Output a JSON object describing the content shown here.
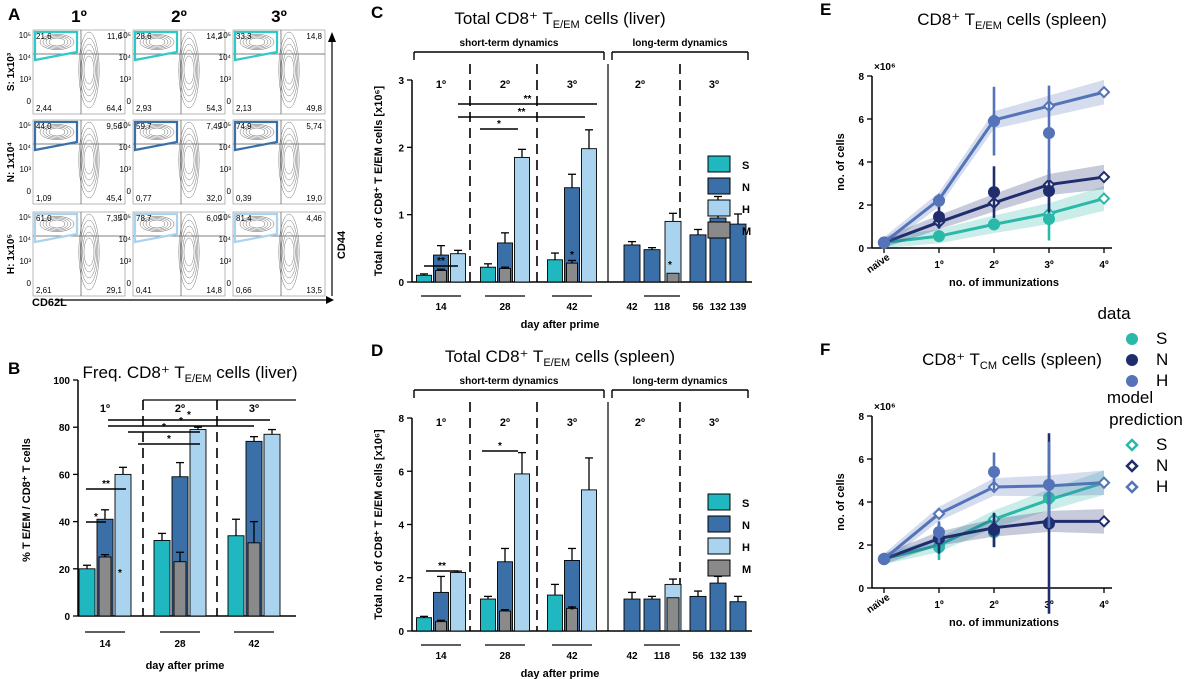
{
  "panels": {
    "A": {
      "label": "A",
      "cols": [
        "1º",
        "2º",
        "3º"
      ],
      "rows": [
        "S: 1x10³",
        "N: 1x10⁴",
        "H: 1x10⁵"
      ],
      "gate_colors": [
        "#2fc9c9",
        "#3a6fa8",
        "#a9d3ee"
      ],
      "quadrants": [
        [
          [
            "21,6",
            "11,6",
            "2,44",
            "64,4"
          ],
          [
            "28,6",
            "14,2",
            "2,93",
            "54,3"
          ],
          [
            "33,3",
            "14,8",
            "2,13",
            "49,8"
          ]
        ],
        [
          [
            "44,0",
            "9,56",
            "1,09",
            "45,4"
          ],
          [
            "59,7",
            "7,49",
            "0,77",
            "32,0"
          ],
          [
            "74,9",
            "5,74",
            "0,39",
            "19,0"
          ]
        ],
        [
          [
            "61,0",
            "7,35",
            "2,61",
            "29,1"
          ],
          [
            "78,7",
            "6,09",
            "0,41",
            "14,8"
          ],
          [
            "81,4",
            "4,46",
            "0,66",
            "13,5"
          ]
        ]
      ],
      "x_axis": "CD62L",
      "y_axis": "CD44",
      "tick_labels": [
        "10⁵",
        "10⁴",
        "10³",
        "0"
      ]
    },
    "B": {
      "label": "B",
      "title": "Freq. CD8⁺ T",
      "title_sub": "E/EM",
      "title_end": " cells (liver)"
    },
    "C": {
      "label": "C",
      "title": "Total CD8⁺ T",
      "title_sub": "E/EM",
      "title_end": " cells (liver)"
    },
    "D": {
      "label": "D",
      "title": "Total CD8⁺ T",
      "title_sub": "E/EM",
      "title_end": " cells (spleen)"
    },
    "E": {
      "label": "E",
      "title": "CD8⁺ T",
      "title_sub": "E/EM",
      "title_end": " cells (spleen)"
    },
    "F": {
      "label": "F",
      "title": "CD8⁺ T",
      "title_sub": "CM",
      "title_end": " cells (spleen)"
    }
  },
  "colors": {
    "S": "#20b8c0",
    "N": "#3a6fa8",
    "H": "#a9d3ee",
    "M": "#8a8a8a",
    "N_line": "#1f2d6e",
    "H_line": "#5473b8",
    "S_line": "#2ab8a8"
  },
  "legend_bars": [
    "S",
    "N",
    "H",
    "M"
  ],
  "legend_lines": {
    "data_title": "data",
    "model_title": "model\nprediction",
    "model_title_1": "model",
    "model_title_2": "prediction",
    "items": [
      "S",
      "N",
      "H"
    ]
  },
  "labels": {
    "short_term": "short-term dynamics",
    "long_term": "long-term dynamics",
    "day_after_prime": "day after prime",
    "no_immunizations": "no. of immunizations",
    "no_cells": "no. of cells",
    "x1e6": "×10⁶",
    "sig2": "**",
    "sig1": "*",
    "naive": "naïve",
    "phase1": "1º",
    "phase2": "2º",
    "phase3": "3º",
    "phase4": "4º"
  },
  "chart_data": [
    {
      "panel": "B",
      "type": "bar",
      "ylabel": "% T E/EM / CD8⁺ T cells",
      "xlabel": "day after prime",
      "ylim": [
        0,
        100
      ],
      "yticks": [
        0,
        20,
        40,
        60,
        80,
        100
      ],
      "groups": [
        {
          "day": "14",
          "phase": "1º",
          "S": 20,
          "N": 41,
          "H": 60,
          "M": 25,
          "S_err": 1.5,
          "N_err": 4,
          "H_err": 3,
          "M_err": 1
        },
        {
          "day": "28",
          "phase": "2º",
          "S": 32,
          "N": 59,
          "H": 79,
          "M": 23,
          "S_err": 3,
          "N_err": 6,
          "H_err": 1,
          "M_err": 4
        },
        {
          "day": "42",
          "phase": "3º",
          "S": 34,
          "N": 74,
          "H": 77,
          "M": 31,
          "S_err": 7,
          "N_err": 2,
          "H_err": 2,
          "M_err": 9
        }
      ]
    },
    {
      "panel": "C",
      "type": "bar",
      "ylabel": "Total no. of CD8⁺ T E/EM cells [x10⁶]",
      "xlabel": "day after prime",
      "ylim": [
        0,
        3
      ],
      "yticks": [
        0,
        1,
        2,
        3
      ],
      "short_term": [
        {
          "day": "14",
          "phase": "1º",
          "S": 0.1,
          "N": 0.4,
          "H": 0.42,
          "M": 0.17,
          "S_err": 0.02,
          "N_err": 0.14,
          "H_err": 0.05,
          "M_err": 0.02
        },
        {
          "day": "28",
          "phase": "2º",
          "S": 0.22,
          "N": 0.58,
          "H": 1.85,
          "M": 0.2,
          "S_err": 0.05,
          "N_err": 0.15,
          "H_err": 0.12,
          "M_err": 0.02
        },
        {
          "day": "42",
          "phase": "3º",
          "S": 0.33,
          "N": 1.4,
          "H": 1.98,
          "M": 0.28,
          "S_err": 0.1,
          "N_err": 0.2,
          "H_err": 0.28,
          "M_err": 0.04
        }
      ],
      "long_term": [
        {
          "day": "42",
          "phase": "2º",
          "value": 0.55,
          "err": 0.05,
          "color": "N"
        },
        {
          "day": "118",
          "phase": "2º",
          "value": 0.48,
          "err": 0.03,
          "color": "N"
        },
        {
          "day": "118",
          "phase": "2º",
          "value": 0.9,
          "err": 0.12,
          "color": "H",
          "M": 0.13
        },
        {
          "day": "56",
          "phase": "3º",
          "value": 0.7,
          "err": 0.08,
          "color": "N"
        },
        {
          "day": "132",
          "phase": "3º",
          "value": 0.95,
          "err": 0.32,
          "color": "N"
        },
        {
          "day": "139",
          "phase": "3º",
          "value": 0.86,
          "err": 0.15,
          "color": "N"
        }
      ]
    },
    {
      "panel": "D",
      "type": "bar",
      "ylabel": "Total no. of CD8⁺ T E/EM cells [x10⁶]",
      "xlabel": "day after prime",
      "ylim": [
        0,
        8
      ],
      "yticks": [
        0,
        2,
        4,
        6,
        8
      ],
      "short_term": [
        {
          "day": "14",
          "phase": "1º",
          "S": 0.5,
          "N": 1.45,
          "H": 2.2,
          "M": 0.35,
          "S_err": 0.05,
          "N_err": 0.6,
          "H_err": 0.05,
          "M_err": 0.05
        },
        {
          "day": "28",
          "phase": "2º",
          "S": 1.2,
          "N": 2.6,
          "H": 5.9,
          "M": 0.75,
          "S_err": 0.1,
          "N_err": 0.5,
          "H_err": 0.8,
          "M_err": 0.05
        },
        {
          "day": "42",
          "phase": "3º",
          "S": 1.35,
          "N": 2.65,
          "H": 5.3,
          "M": 0.85,
          "S_err": 0.4,
          "N_err": 0.45,
          "H_err": 1.2,
          "M_err": 0.05
        }
      ],
      "long_term": [
        {
          "day": "42",
          "phase": "2º",
          "value": 1.2,
          "err": 0.25,
          "color": "N"
        },
        {
          "day": "118",
          "phase": "2º",
          "value": 1.2,
          "err": 0.1,
          "color": "N"
        },
        {
          "day": "118",
          "phase": "2º",
          "value": 1.75,
          "err": 0.2,
          "color": "H",
          "M": 1.25
        },
        {
          "day": "56",
          "phase": "3º",
          "value": 1.3,
          "err": 0.2,
          "color": "N"
        },
        {
          "day": "132",
          "phase": "3º",
          "value": 1.8,
          "err": 0.25,
          "color": "N"
        },
        {
          "day": "139",
          "phase": "3º",
          "value": 1.1,
          "err": 0.2,
          "color": "N"
        }
      ]
    },
    {
      "panel": "E",
      "type": "line",
      "x": [
        "naïve",
        "1º",
        "2º",
        "3º",
        "4º"
      ],
      "xlabel": "no. of immunizations",
      "ylabel": "no. of cells",
      "ylim": [
        0,
        8
      ],
      "yticks": [
        0,
        2,
        4,
        6,
        8
      ],
      "scale": "×10⁶",
      "data": {
        "S": {
          "x": [
            0,
            1,
            2,
            3
          ],
          "y": [
            0.25,
            0.55,
            1.1,
            1.35
          ],
          "err": [
            0.05,
            0.1,
            0.2,
            1.0
          ]
        },
        "N": {
          "x": [
            0,
            1,
            2,
            3
          ],
          "y": [
            0.25,
            1.45,
            2.6,
            2.65
          ],
          "err": [
            0.05,
            0.55,
            1.2,
            1.0
          ]
        },
        "H": {
          "x": [
            0,
            1,
            2,
            3
          ],
          "y": [
            0.25,
            2.2,
            5.9,
            5.35
          ],
          "err": [
            0.05,
            0.3,
            1.6,
            2.2
          ]
        }
      },
      "model": {
        "S": {
          "x": [
            0,
            1,
            2,
            3,
            4
          ],
          "y": [
            0.25,
            0.55,
            1.1,
            1.6,
            2.3
          ]
        },
        "N": {
          "x": [
            0,
            1,
            2,
            3,
            4
          ],
          "y": [
            0.25,
            1.2,
            2.1,
            2.95,
            3.3
          ]
        },
        "H": {
          "x": [
            0,
            1,
            2,
            3,
            4
          ],
          "y": [
            0.25,
            2.25,
            5.95,
            6.6,
            7.25
          ]
        }
      }
    },
    {
      "panel": "F",
      "type": "line",
      "x": [
        "naïve",
        "1º",
        "2º",
        "3º",
        "4º"
      ],
      "xlabel": "no. of immunizations",
      "ylabel": "no. of cells",
      "ylim": [
        0,
        8
      ],
      "yticks": [
        0,
        2,
        4,
        6,
        8
      ],
      "scale": "×10⁶",
      "data": {
        "S": {
          "x": [
            0,
            1,
            2,
            3
          ],
          "y": [
            1.35,
            1.9,
            2.6,
            4.2
          ],
          "err": [
            0.1,
            0.6,
            0.7,
            1.5
          ]
        },
        "N": {
          "x": [
            0,
            1,
            2,
            3
          ],
          "y": [
            1.35,
            2.3,
            2.7,
            3.0
          ],
          "err": [
            0.1,
            0.7,
            0.8,
            4.2
          ]
        },
        "H": {
          "x": [
            0,
            1,
            2,
            3
          ],
          "y": [
            1.35,
            2.6,
            5.4,
            4.8
          ],
          "err": [
            0.1,
            0.5,
            0.9,
            2.0
          ]
        }
      },
      "model": {
        "S": {
          "x": [
            0,
            1,
            2,
            3,
            4
          ],
          "y": [
            1.35,
            2.0,
            3.2,
            4.1,
            4.9
          ]
        },
        "N": {
          "x": [
            0,
            1,
            2,
            3,
            4
          ],
          "y": [
            1.35,
            2.3,
            2.8,
            3.1,
            3.1
          ]
        },
        "H": {
          "x": [
            0,
            1,
            2,
            3,
            4
          ],
          "y": [
            1.35,
            3.45,
            4.7,
            4.75,
            4.9
          ]
        }
      }
    }
  ]
}
